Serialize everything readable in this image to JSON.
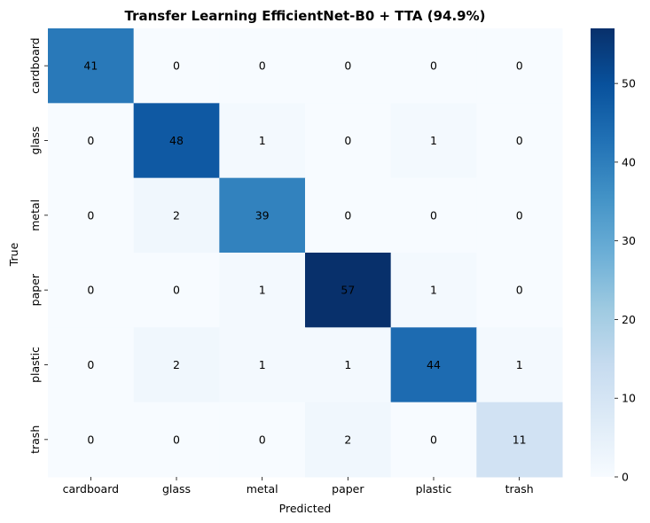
{
  "chart_data": {
    "type": "heatmap",
    "title": "Transfer Learning EfficientNet-B0 + TTA (94.9%)",
    "xlabel": "Predicted",
    "ylabel": "True",
    "x_categories": [
      "cardboard",
      "glass",
      "metal",
      "paper",
      "plastic",
      "trash"
    ],
    "y_categories": [
      "cardboard",
      "glass",
      "metal",
      "paper",
      "plastic",
      "trash"
    ],
    "values": [
      [
        41,
        0,
        0,
        0,
        0,
        0
      ],
      [
        0,
        48,
        1,
        0,
        1,
        0
      ],
      [
        0,
        2,
        39,
        0,
        0,
        0
      ],
      [
        0,
        0,
        1,
        57,
        1,
        0
      ],
      [
        0,
        2,
        1,
        1,
        44,
        1
      ],
      [
        0,
        0,
        0,
        2,
        0,
        11
      ]
    ],
    "colormap": "Blues",
    "vmin": 0,
    "vmax": 57,
    "colorbar_ticks": [
      0,
      10,
      20,
      30,
      40,
      50
    ],
    "annotation_text_light": "#ffffff",
    "annotation_text_dark": "#262626"
  }
}
